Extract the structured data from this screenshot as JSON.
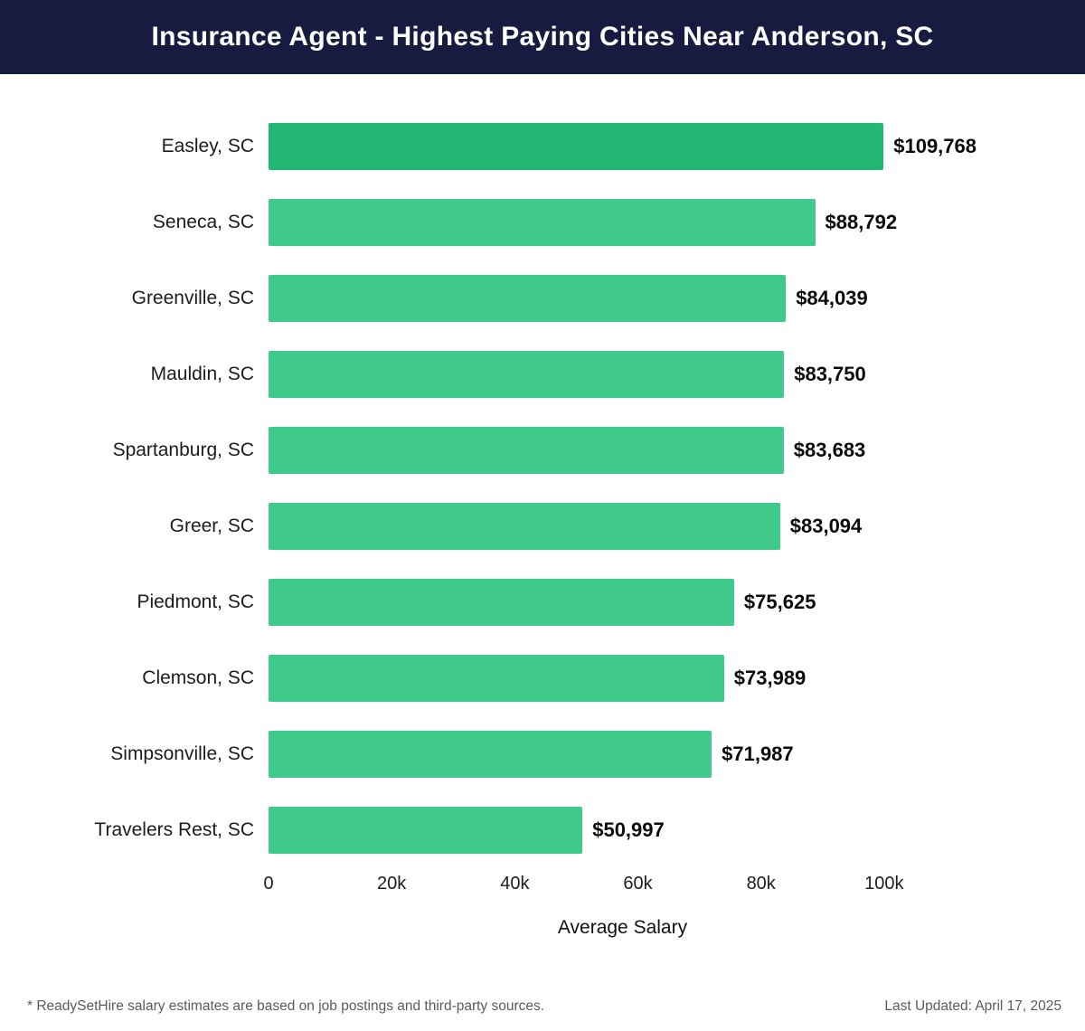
{
  "header": {
    "title": "Insurance Agent - Highest Paying Cities Near Anderson, SC"
  },
  "chart_data": {
    "type": "bar",
    "orientation": "horizontal",
    "title": "Insurance Agent - Highest Paying Cities Near Anderson, SC",
    "categories": [
      "Easley, SC",
      "Seneca, SC",
      "Greenville, SC",
      "Mauldin, SC",
      "Spartanburg, SC",
      "Greer, SC",
      "Piedmont, SC",
      "Clemson, SC",
      "Simpsonville, SC",
      "Travelers Rest, SC"
    ],
    "values": [
      109768,
      88792,
      84039,
      83750,
      83683,
      83094,
      75625,
      73989,
      71987,
      50997
    ],
    "value_labels": [
      "$109,768",
      "$88,792",
      "$84,039",
      "$83,750",
      "$83,683",
      "$83,094",
      "$75,625",
      "$73,989",
      "$71,987",
      "$50,997"
    ],
    "xlabel": "Average Salary",
    "ylabel": "",
    "xlim": [
      0,
      115000
    ],
    "grid": false,
    "legend": false,
    "ticks": [
      {
        "label": "0",
        "value": 0
      },
      {
        "label": "20k",
        "value": 20000
      },
      {
        "label": "40k",
        "value": 40000
      },
      {
        "label": "60k",
        "value": 60000
      },
      {
        "label": "80k",
        "value": 80000
      },
      {
        "label": "100k",
        "value": 100000
      }
    ]
  },
  "colors": {
    "header_bg": "#171b40",
    "title_text": "#ffffff",
    "bar_highlight": "#22b873",
    "bar_normal": "#3fc98b",
    "value_text": "#0b0b0b",
    "label_text": "#1c1c1c",
    "footer_text": "#5b5b5b"
  },
  "footer": {
    "note": "* ReadySetHire salary estimates are based on job postings and third-party sources.",
    "last_updated": "Last Updated: April 17, 2025"
  }
}
